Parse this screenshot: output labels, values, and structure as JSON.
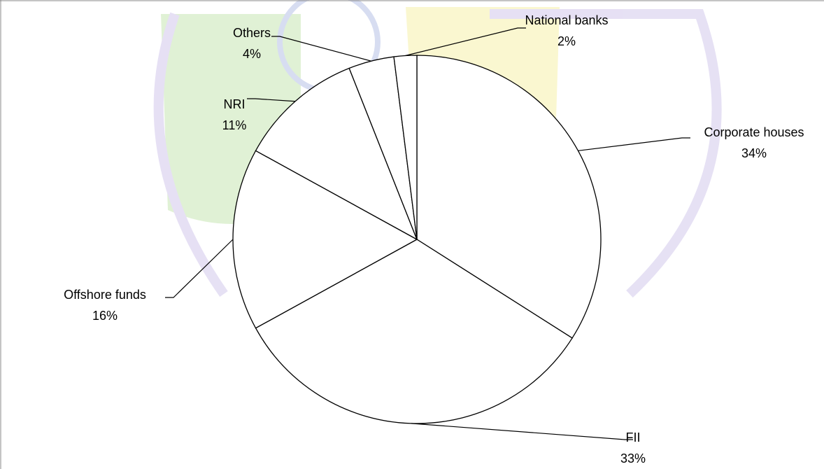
{
  "chart_data": {
    "type": "pie",
    "categories": [
      "Corporate houses",
      "FII",
      "Offshore funds",
      "NRI",
      "Others",
      "National banks"
    ],
    "values": [
      34,
      33,
      16,
      11,
      4,
      2
    ],
    "value_labels": [
      "34%",
      "33%",
      "16%",
      "11%",
      "4%",
      "2%"
    ],
    "color": "#ffffff"
  }
}
